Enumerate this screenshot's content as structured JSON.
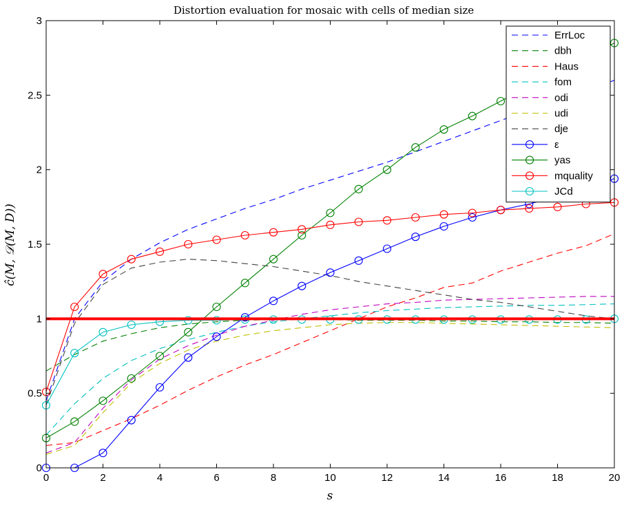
{
  "chart_data": {
    "type": "line",
    "title": "Distortion evaluation for mosaic with cells of median size",
    "xlabel": "s",
    "ylabel": "ĉ(M, 𝒟(M, D))",
    "xlim": [
      0,
      20
    ],
    "ylim": [
      0,
      3
    ],
    "xticks": [
      0,
      2,
      4,
      6,
      8,
      10,
      12,
      14,
      16,
      18,
      20
    ],
    "yticks": [
      0,
      0.5,
      1,
      1.5,
      2,
      2.5,
      3
    ],
    "xtick_labels": [
      "0",
      "2",
      "4",
      "6",
      "8",
      "10",
      "12",
      "14",
      "16",
      "18",
      "20"
    ],
    "ytick_labels": [
      "0",
      "0.5",
      "1",
      "1.5",
      "2",
      "2.5",
      "3"
    ],
    "grid": false,
    "legend_position": "top-right",
    "x": [
      0,
      1,
      2,
      3,
      4,
      5,
      6,
      7,
      8,
      9,
      10,
      11,
      12,
      13,
      14,
      15,
      16,
      17,
      18,
      19,
      20
    ],
    "reference_line": {
      "y": 1,
      "color": "#ff0000"
    },
    "series": [
      {
        "name": "ErrLoc",
        "color": "#0000ff",
        "style": "dashed",
        "marker": "none",
        "values": [
          0.45,
          1.0,
          1.25,
          1.4,
          1.51,
          1.6,
          1.67,
          1.74,
          1.8,
          1.87,
          1.93,
          1.99,
          2.05,
          2.12,
          2.19,
          2.26,
          2.33,
          2.4,
          2.47,
          2.53,
          2.6
        ]
      },
      {
        "name": "dbh",
        "color": "#008000",
        "style": "dashed",
        "marker": "none",
        "values": [
          0.65,
          0.76,
          0.85,
          0.9,
          0.94,
          0.965,
          0.98,
          0.99,
          0.995,
          0.995,
          0.995,
          0.99,
          0.99,
          0.99,
          0.985,
          0.985,
          0.98,
          0.98,
          0.975,
          0.975,
          0.97
        ]
      },
      {
        "name": "Haus",
        "color": "#ff0000",
        "style": "dashed",
        "marker": "none",
        "values": [
          0.15,
          0.17,
          0.25,
          0.33,
          0.42,
          0.52,
          0.61,
          0.69,
          0.76,
          0.84,
          0.92,
          1.0,
          1.08,
          1.14,
          1.21,
          1.24,
          1.32,
          1.38,
          1.44,
          1.49,
          1.57
        ]
      },
      {
        "name": "fom",
        "color": "#00bfbf",
        "style": "dashed",
        "marker": "none",
        "values": [
          0.22,
          0.43,
          0.6,
          0.72,
          0.8,
          0.86,
          0.91,
          0.95,
          0.98,
          1.0,
          1.02,
          1.04,
          1.055,
          1.065,
          1.075,
          1.08,
          1.085,
          1.09,
          1.09,
          1.095,
          1.1
        ]
      },
      {
        "name": "odi",
        "color": "#bf00bf",
        "style": "dashed",
        "marker": "none",
        "values": [
          0.1,
          0.17,
          0.4,
          0.59,
          0.73,
          0.82,
          0.89,
          0.95,
          0.99,
          1.03,
          1.06,
          1.08,
          1.1,
          1.11,
          1.125,
          1.13,
          1.135,
          1.14,
          1.145,
          1.15,
          1.15
        ]
      },
      {
        "name": "udi",
        "color": "#bfbf00",
        "style": "dashed",
        "marker": "none",
        "values": [
          0.09,
          0.15,
          0.37,
          0.57,
          0.7,
          0.79,
          0.85,
          0.89,
          0.92,
          0.94,
          0.96,
          0.97,
          0.975,
          0.975,
          0.97,
          0.965,
          0.96,
          0.955,
          0.95,
          0.945,
          0.94
        ]
      },
      {
        "name": "dje",
        "color": "#404040",
        "style": "dashed",
        "marker": "none",
        "values": [
          0.42,
          0.97,
          1.23,
          1.34,
          1.38,
          1.4,
          1.39,
          1.37,
          1.35,
          1.32,
          1.29,
          1.25,
          1.22,
          1.19,
          1.16,
          1.13,
          1.11,
          1.08,
          1.05,
          1.02,
          1.0
        ]
      },
      {
        "name": "ε",
        "color": "#0000ff",
        "style": "solid",
        "marker": "circle",
        "values": [
          0.0,
          0.0,
          0.1,
          0.32,
          0.54,
          0.74,
          0.88,
          1.01,
          1.12,
          1.22,
          1.31,
          1.39,
          1.47,
          1.55,
          1.62,
          1.68,
          1.73,
          1.77,
          1.82,
          1.88,
          1.94
        ]
      },
      {
        "name": "yas",
        "color": "#008000",
        "style": "solid",
        "marker": "circle",
        "values": [
          0.2,
          0.31,
          0.45,
          0.6,
          0.75,
          0.91,
          1.08,
          1.24,
          1.4,
          1.56,
          1.71,
          1.87,
          2.0,
          2.15,
          2.27,
          2.36,
          2.46,
          2.56,
          2.66,
          2.75,
          2.85
        ]
      },
      {
        "name": "mquality",
        "color": "#ff0000",
        "style": "solid",
        "marker": "circle",
        "values": [
          0.51,
          1.08,
          1.3,
          1.4,
          1.45,
          1.5,
          1.53,
          1.56,
          1.58,
          1.6,
          1.63,
          1.65,
          1.66,
          1.68,
          1.7,
          1.71,
          1.73,
          1.74,
          1.75,
          1.77,
          1.78
        ]
      },
      {
        "name": "JCd",
        "color": "#00bfbf",
        "style": "solid",
        "marker": "circle",
        "values": [
          0.42,
          0.77,
          0.91,
          0.96,
          0.98,
          0.99,
          0.99,
          0.995,
          0.995,
          0.995,
          0.995,
          0.995,
          0.995,
          0.995,
          0.995,
          0.995,
          0.995,
          0.995,
          0.995,
          0.995,
          1.0
        ]
      }
    ]
  }
}
